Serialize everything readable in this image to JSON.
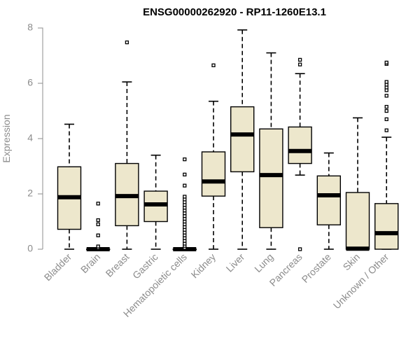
{
  "chart_data": {
    "type": "boxplot",
    "title": "ENSG00000262920 - RP11-1260E13.1",
    "xlabel": "",
    "ylabel": "Expression",
    "ylim": [
      0,
      8
    ],
    "yticks": [
      0,
      2,
      4,
      6,
      8
    ],
    "box_color": "#EDE7CC",
    "categories": [
      "Bladder",
      "Brain",
      "Breast",
      "Gastric",
      "Hematopoietic cells",
      "Kidney",
      "Liver",
      "Lung",
      "Pancreas",
      "Prostate",
      "Skin",
      "Unknown / Other"
    ],
    "boxes": [
      {
        "name": "Bladder",
        "whisker_low": 0,
        "q1": 0.72,
        "median": 1.88,
        "q3": 2.98,
        "whisker_high": 4.52,
        "outliers": []
      },
      {
        "name": "Brain",
        "whisker_low": 0,
        "q1": 0,
        "median": 0,
        "q3": 0,
        "whisker_high": 0,
        "outliers": [
          0.05,
          0.1,
          0.5,
          0.9,
          1.05,
          1.65
        ]
      },
      {
        "name": "Breast",
        "whisker_low": 0,
        "q1": 0.85,
        "median": 1.92,
        "q3": 3.1,
        "whisker_high": 6.05,
        "outliers": [
          7.48
        ]
      },
      {
        "name": "Gastric",
        "whisker_low": 0,
        "q1": 1.0,
        "median": 1.62,
        "q3": 2.1,
        "whisker_high": 3.4,
        "outliers": []
      },
      {
        "name": "Hematopoietic cells",
        "whisker_low": 0,
        "q1": 0,
        "median": 0,
        "q3": 0,
        "whisker_high": 0,
        "outliers": [
          0.05,
          0.12,
          0.2,
          0.3,
          0.4,
          0.5,
          0.6,
          0.7,
          0.8,
          0.9,
          1.0,
          1.1,
          1.2,
          1.3,
          1.4,
          1.5,
          1.6,
          1.7,
          1.8,
          1.9,
          2.3,
          2.7,
          3.25
        ]
      },
      {
        "name": "Kidney",
        "whisker_low": 0,
        "q1": 1.92,
        "median": 2.45,
        "q3": 3.52,
        "whisker_high": 5.35,
        "outliers": [
          6.65
        ]
      },
      {
        "name": "Liver",
        "whisker_low": 0,
        "q1": 2.8,
        "median": 4.15,
        "q3": 5.15,
        "whisker_high": 7.93,
        "outliers": []
      },
      {
        "name": "Lung",
        "whisker_low": 0,
        "q1": 0.78,
        "median": 2.68,
        "q3": 4.35,
        "whisker_high": 7.1,
        "outliers": []
      },
      {
        "name": "Pancreas",
        "whisker_low": 2.68,
        "q1": 3.1,
        "median": 3.55,
        "q3": 4.42,
        "whisker_high": 6.35,
        "outliers": [
          0,
          6.68,
          6.85
        ]
      },
      {
        "name": "Prostate",
        "whisker_low": 0,
        "q1": 0.88,
        "median": 1.95,
        "q3": 2.65,
        "whisker_high": 3.48,
        "outliers": []
      },
      {
        "name": "Skin",
        "whisker_low": 0,
        "q1": 0,
        "median": 0.02,
        "q3": 2.05,
        "whisker_high": 4.75,
        "outliers": []
      },
      {
        "name": "Unknown / Other",
        "whisker_low": 0,
        "q1": 0,
        "median": 0.58,
        "q3": 1.65,
        "whisker_high": 4.05,
        "outliers": [
          4.3,
          4.7,
          5.0,
          5.15,
          5.55,
          5.75,
          5.85,
          5.95,
          6.05,
          6.7,
          6.75
        ]
      }
    ]
  }
}
